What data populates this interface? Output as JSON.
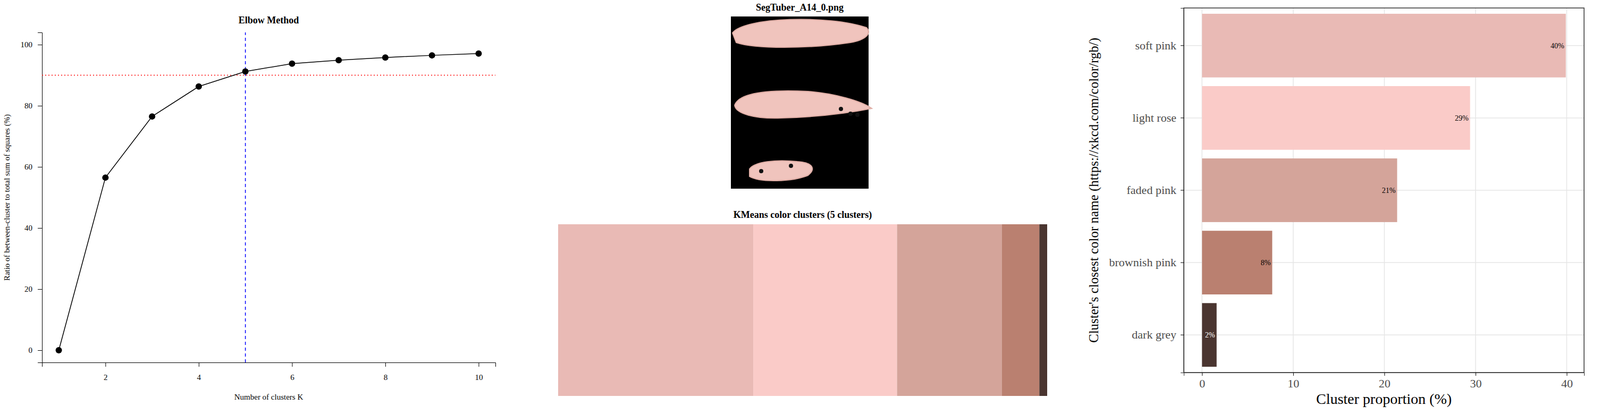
{
  "chart_data": [
    {
      "type": "line",
      "title": "Elbow Method",
      "x_label": "Number of clusters K",
      "y_label": "Ratio of between-cluster to total sum of squares (%)",
      "x": [
        1,
        2,
        3,
        4,
        5,
        6,
        7,
        8,
        9,
        10
      ],
      "values": [
        0,
        56.5,
        76.5,
        86.3,
        91.2,
        93.8,
        94.9,
        95.8,
        96.5,
        97.1
      ],
      "color": "#000000",
      "marker": "circle",
      "xlim": [
        0.64,
        10.36
      ],
      "ylim": [
        -4,
        104
      ],
      "xticks": [
        2,
        4,
        6,
        8,
        10
      ],
      "yticks": [
        0,
        20,
        40,
        60,
        80,
        100
      ],
      "reference_lines": [
        {
          "axis": "y",
          "value": 90,
          "color": "#ff0000",
          "line_style": "dotted"
        },
        {
          "axis": "x",
          "value": 5,
          "color": "#0000ff",
          "line_style": "dashed"
        }
      ]
    },
    {
      "type": "image",
      "title": "SegTuber_A14_0.png"
    },
    {
      "type": "bar",
      "title": "KMeans color clusters (5 clusters)",
      "orientation": "horizontal",
      "stacked": true,
      "tick_labels": false,
      "values": [
        39.9,
        29.4,
        21.4,
        7.7,
        1.6
      ],
      "colors": [
        "#e9bab5",
        "#facbc8",
        "#d4a49a",
        "#ba8070",
        "#4a3530"
      ],
      "xlim": [
        0,
        100
      ]
    },
    {
      "type": "bar",
      "orientation": "horizontal",
      "x_label": "Cluster proportion (%)",
      "y_label": "Cluster's closest color name (https://xkcd.com/color/rgb/)",
      "categories": [
        "soft pink",
        "light rose",
        "faded pink",
        "brownish pink",
        "dark grey"
      ],
      "values": [
        39.9,
        29.4,
        21.4,
        7.7,
        1.6
      ],
      "value_labels": [
        "40%",
        "29%",
        "21%",
        "8%",
        "2%"
      ],
      "colors": [
        "#e9bab5",
        "#facbc8",
        "#d4a49a",
        "#ba8070",
        "#4a3530"
      ],
      "data_labels": true,
      "grid": true,
      "xlim": [
        -2,
        41.9
      ],
      "xticks": [
        0,
        10,
        20,
        30,
        40
      ]
    }
  ]
}
